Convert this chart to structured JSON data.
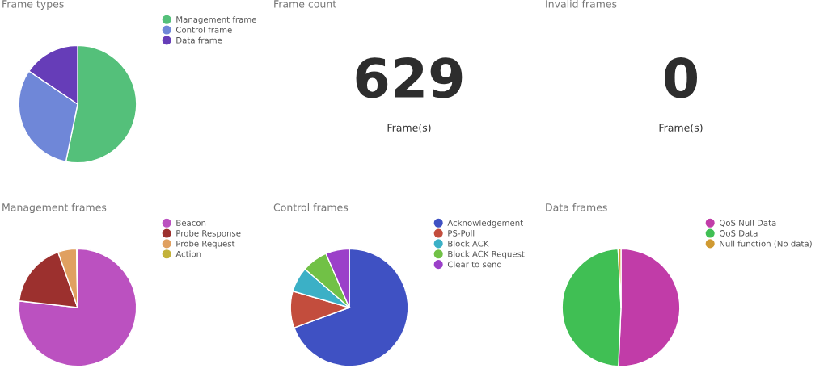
{
  "chart_data": [
    {
      "type": "pie",
      "title": "Frame types",
      "categories": [
        "Management frame",
        "Control frame",
        "Data frame"
      ],
      "values": [
        53.2,
        31.3,
        15.5
      ],
      "colors": [
        "#54c07a",
        "#6f87d8",
        "#663db8"
      ],
      "legend": "top right"
    },
    {
      "type": "other",
      "title": "Frame count",
      "annotations": [
        "629",
        "Frame(s)"
      ]
    },
    {
      "type": "other",
      "title": "Invalid frames",
      "annotations": [
        "0",
        "Frame(s)"
      ]
    },
    {
      "type": "pie",
      "title": "Management frames",
      "categories": [
        "Beacon",
        "Probe Response",
        "Probe Request",
        "Action"
      ],
      "values": [
        76.8,
        17.8,
        5.1,
        0.3
      ],
      "colors": [
        "#bb51c0",
        "#9c302e",
        "#e0a060",
        "#c3b23a"
      ],
      "legend": "top right"
    },
    {
      "type": "pie",
      "title": "Control frames",
      "categories": [
        "Acknowledgement",
        "PS-Poll",
        "Block ACK",
        "Block ACK Request",
        "Clear to send"
      ],
      "values": [
        69.4,
        10.1,
        6.9,
        7.1,
        6.5
      ],
      "colors": [
        "#3f51c3",
        "#c34d3d",
        "#3bb0c6",
        "#71c146",
        "#9b40c9"
      ],
      "legend": "top right"
    },
    {
      "type": "pie",
      "title": "Data frames",
      "categories": [
        "QoS Null Data",
        "QoS Data",
        "Null function (No data)"
      ],
      "values": [
        50.7,
        48.5,
        0.8
      ],
      "colors": [
        "#c13ca8",
        "#40bf54",
        "#d09a32"
      ],
      "legend": "top right"
    }
  ]
}
